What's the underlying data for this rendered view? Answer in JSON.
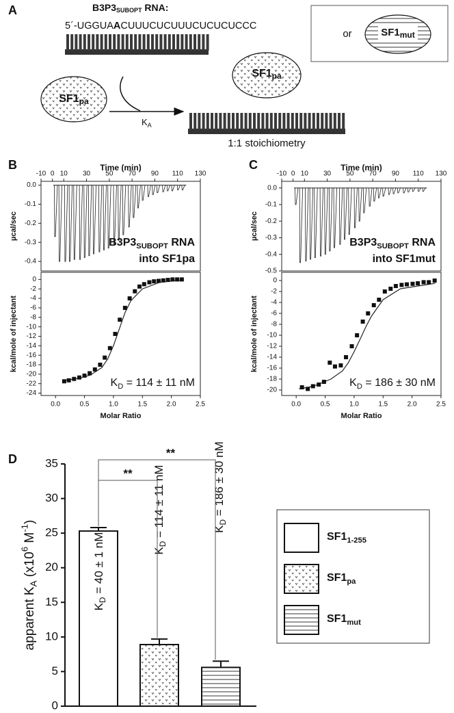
{
  "panel_a": {
    "label": "A",
    "rna_title": [
      "B3P3",
      "SUBOPT",
      " RNA:"
    ],
    "sequence": [
      "5´-UGGUA",
      "A",
      "CUUUCUCUUUCUCUCUCCC"
    ],
    "protein_left": [
      "SF1",
      "pa"
    ],
    "protein_right": [
      "SF1",
      "pa"
    ],
    "constant": [
      "K",
      "A"
    ],
    "stoichiometry": "1:1 stoichiometry",
    "or": "or",
    "protein_alt": [
      "SF1",
      "mut"
    ]
  },
  "chart_data": [
    {
      "type": "itc",
      "label": "B",
      "top": {
        "xlabel": "Time (min)",
        "ylabel": "µcal/sec",
        "xlim": [
          -10,
          130
        ],
        "xticks": [
          -10,
          0,
          10,
          30,
          50,
          70,
          90,
          110,
          130
        ],
        "ylim": [
          -0.45,
          0.02
        ],
        "yticks": [
          {
            "value": 0,
            "label": "0.0"
          },
          -0.1,
          -0.2,
          -0.3,
          -0.4
        ],
        "x": [
          2,
          6,
          11,
          15,
          19,
          24,
          28,
          32,
          36,
          41,
          45,
          49,
          54,
          58,
          62,
          67,
          71,
          75,
          79,
          84,
          88,
          92,
          97,
          101,
          105,
          110,
          114
        ],
        "values": [
          -0.27,
          -0.4,
          -0.4,
          -0.4,
          -0.39,
          -0.39,
          -0.38,
          -0.37,
          -0.36,
          -0.35,
          -0.34,
          -0.33,
          -0.31,
          -0.29,
          -0.26,
          -0.22,
          -0.17,
          -0.12,
          -0.08,
          -0.06,
          -0.05,
          -0.04,
          -0.035,
          -0.03,
          -0.03,
          -0.025,
          -0.025
        ],
        "annotation": [
          "B3P3",
          "SUBOPT",
          " RNA"
        ],
        "annotation2": "into SF1pa"
      },
      "bottom": {
        "xlabel": "Molar Ratio",
        "ylabel": "kcal/mole of injectant",
        "xlim": [
          -0.25,
          2.5
        ],
        "xticks": [
          {
            "value": 0,
            "label": "0.0"
          },
          0.5,
          {
            "value": 1,
            "label": "1.0"
          },
          1.5,
          {
            "value": 2,
            "label": "2.0"
          },
          2.5
        ],
        "ylim": [
          -24.5,
          1.5
        ],
        "yticks": [
          0,
          -2,
          -4,
          -6,
          -8,
          -10,
          -12,
          -14,
          -16,
          -18,
          -20,
          -22,
          -24
        ],
        "x": [
          0.15,
          0.23,
          0.32,
          0.41,
          0.5,
          0.59,
          0.68,
          0.77,
          0.85,
          0.94,
          1.03,
          1.11,
          1.2,
          1.28,
          1.37,
          1.45,
          1.53,
          1.62,
          1.7,
          1.78,
          1.86,
          1.94,
          2.02,
          2.1,
          2.18
        ],
        "values": [
          -21.5,
          -21.3,
          -21,
          -20.7,
          -20.3,
          -19.8,
          -19,
          -18,
          -16.5,
          -14.5,
          -11.5,
          -8.5,
          -6,
          -4,
          -2.5,
          -1.5,
          -1,
          -0.6,
          -0.4,
          -0.3,
          -0.2,
          -0.1,
          0,
          0,
          0
        ],
        "fit": {
          "x": [
            0.15,
            0.4,
            0.6,
            0.8,
            0.9,
            1.0,
            1.1,
            1.2,
            1.3,
            1.5,
            1.8,
            2.2
          ],
          "values": [
            -21.3,
            -20.9,
            -20.2,
            -18.6,
            -16.8,
            -14,
            -10.5,
            -7,
            -4.5,
            -2,
            -0.6,
            -0.1
          ]
        },
        "annotation": [
          "K",
          "D",
          " = 114 ± 11 nM"
        ]
      }
    },
    {
      "type": "itc",
      "label": "C",
      "top": {
        "xlabel": "Time (min)",
        "ylabel": "µcal/sec",
        "xlim": [
          -10,
          130
        ],
        "xticks": [
          -10,
          0,
          10,
          30,
          50,
          70,
          90,
          110,
          130
        ],
        "ylim": [
          -0.5,
          0.04
        ],
        "yticks": [
          {
            "value": 0,
            "label": "0.0"
          },
          -0.1,
          -0.2,
          -0.3,
          -0.4,
          -0.5
        ],
        "x": [
          2,
          6,
          11,
          15,
          19,
          24,
          28,
          32,
          36,
          41,
          45,
          49,
          54,
          58,
          62,
          67,
          71,
          75,
          79,
          84,
          88,
          92,
          97,
          101,
          105,
          110,
          114
        ],
        "values": [
          -0.1,
          -0.45,
          -0.44,
          -0.43,
          -0.42,
          -0.41,
          -0.4,
          -0.38,
          -0.36,
          -0.34,
          -0.31,
          -0.28,
          -0.24,
          -0.2,
          -0.15,
          -0.11,
          -0.08,
          -0.06,
          -0.05,
          -0.04,
          -0.035,
          -0.03,
          -0.03,
          -0.025,
          -0.02,
          -0.02,
          -0.02
        ],
        "annotation": [
          "B3P3",
          "SUBOPT",
          " RNA"
        ],
        "annotation2": "into SF1mut"
      },
      "bottom": {
        "xlabel": "Molar Ratio",
        "ylabel": "kcal/mole of injectant",
        "xlim": [
          -0.25,
          2.5
        ],
        "xticks": [
          {
            "value": 0,
            "label": "0.0"
          },
          0.5,
          {
            "value": 1,
            "label": "1.0"
          },
          1.5,
          {
            "value": 2,
            "label": "2.0"
          },
          2.5
        ],
        "ylim": [
          -21,
          1.5
        ],
        "yticks": [
          0,
          -2,
          -4,
          -6,
          -8,
          -10,
          -12,
          -14,
          -16,
          -18,
          -20
        ],
        "x": [
          0.1,
          0.2,
          0.29,
          0.39,
          0.48,
          0.58,
          0.67,
          0.77,
          0.86,
          0.96,
          1.05,
          1.15,
          1.24,
          1.34,
          1.43,
          1.53,
          1.63,
          1.72,
          1.82,
          1.91,
          2.01,
          2.1,
          2.2,
          2.29,
          2.39
        ],
        "values": [
          -19.5,
          -19.8,
          -19.3,
          -19,
          -18.5,
          -15,
          -15.7,
          -15.5,
          -14,
          -12,
          -10,
          -7.5,
          -6,
          -4.5,
          -3.5,
          -2,
          -1.5,
          -1,
          -0.8,
          -0.7,
          -0.6,
          -0.5,
          -0.3,
          -0.3,
          0
        ],
        "fit": {
          "x": [
            0.05,
            0.3,
            0.6,
            0.8,
            0.9,
            1.0,
            1.1,
            1.2,
            1.3,
            1.5,
            1.8,
            2.4
          ],
          "values": [
            -19.8,
            -19.3,
            -18,
            -16.5,
            -15,
            -13,
            -10.8,
            -8.5,
            -6.5,
            -3.5,
            -1.5,
            -0.5
          ]
        },
        "annotation": [
          "K",
          "D",
          " = 186 ± 30 nM"
        ]
      }
    },
    {
      "type": "bar",
      "label": "D",
      "ylabel": [
        "apparent K",
        "A",
        " (x10",
        "6",
        " M",
        "-1",
        ")"
      ],
      "ylim": [
        0,
        35
      ],
      "yticks": [
        0,
        5,
        10,
        15,
        20,
        25,
        30,
        35
      ],
      "values": [
        25.3,
        8.9,
        5.6
      ],
      "errors": [
        0.5,
        0.8,
        0.9
      ],
      "value_annotations": [
        [
          "K",
          "D",
          " = 40 ± 1 nM"
        ],
        [
          "K",
          "D",
          " = 114 ± 11 nM"
        ],
        [
          "K",
          "D",
          " = 186 ± 30 nM"
        ]
      ],
      "significance": [
        "**",
        "**"
      ],
      "legend": [
        {
          "name": [
            "SF1",
            "1-255"
          ],
          "pattern": "none"
        },
        {
          "name": [
            "SF1",
            "pa"
          ],
          "pattern": "dots"
        },
        {
          "name": [
            "SF1",
            "mut"
          ],
          "pattern": "lines"
        }
      ]
    }
  ]
}
